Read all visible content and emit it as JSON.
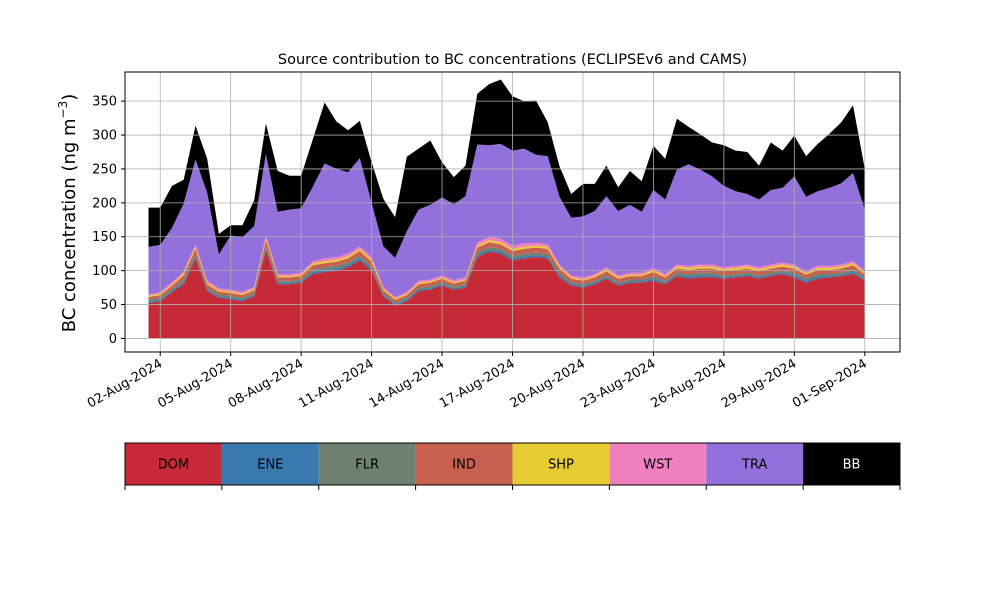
{
  "chart_data": {
    "type": "area",
    "stacked": true,
    "title": "Source contribution to BC concentrations (ECLIPSEv6 and CAMS)",
    "xlabel": "",
    "ylabel": "BC concentration (ng m",
    "ylabel_sup": "−3",
    "ylabel_close": ")",
    "ylim": [
      -20,
      393
    ],
    "xlim": [
      "2024-07-31T12:00",
      "2024-09-02T12:00"
    ],
    "grid": true,
    "yticks": [
      0,
      50,
      100,
      150,
      200,
      250,
      300,
      350
    ],
    "xticks": [
      "2024-08-02",
      "2024-08-05",
      "2024-08-08",
      "2024-08-11",
      "2024-08-14",
      "2024-08-17",
      "2024-08-20",
      "2024-08-23",
      "2024-08-26",
      "2024-08-29",
      "2024-09-01"
    ],
    "xtick_labels": [
      "02-Aug-2024",
      "05-Aug-2024",
      "08-Aug-2024",
      "11-Aug-2024",
      "14-Aug-2024",
      "17-Aug-2024",
      "20-Aug-2024",
      "23-Aug-2024",
      "26-Aug-2024",
      "29-Aug-2024",
      "01-Sep-2024"
    ],
    "x": [
      "2024-08-01T12:00",
      "2024-08-02T00:00",
      "2024-08-02T12:00",
      "2024-08-03T00:00",
      "2024-08-03T12:00",
      "2024-08-04T00:00",
      "2024-08-04T12:00",
      "2024-08-05T00:00",
      "2024-08-05T12:00",
      "2024-08-06T00:00",
      "2024-08-06T12:00",
      "2024-08-07T00:00",
      "2024-08-07T12:00",
      "2024-08-08T00:00",
      "2024-08-08T12:00",
      "2024-08-09T00:00",
      "2024-08-09T12:00",
      "2024-08-10T00:00",
      "2024-08-10T12:00",
      "2024-08-11T00:00",
      "2024-08-11T12:00",
      "2024-08-12T00:00",
      "2024-08-12T12:00",
      "2024-08-13T00:00",
      "2024-08-13T12:00",
      "2024-08-14T00:00",
      "2024-08-14T12:00",
      "2024-08-15T00:00",
      "2024-08-15T12:00",
      "2024-08-16T00:00",
      "2024-08-16T12:00",
      "2024-08-17T00:00",
      "2024-08-17T12:00",
      "2024-08-18T00:00",
      "2024-08-18T12:00",
      "2024-08-19T00:00",
      "2024-08-19T12:00",
      "2024-08-20T00:00",
      "2024-08-20T12:00",
      "2024-08-21T00:00",
      "2024-08-21T12:00",
      "2024-08-22T00:00",
      "2024-08-22T12:00",
      "2024-08-23T00:00",
      "2024-08-23T12:00",
      "2024-08-24T00:00",
      "2024-08-24T12:00",
      "2024-08-25T00:00",
      "2024-08-25T12:00",
      "2024-08-26T00:00",
      "2024-08-26T12:00",
      "2024-08-27T00:00",
      "2024-08-27T12:00",
      "2024-08-28T00:00",
      "2024-08-28T12:00",
      "2024-08-29T00:00",
      "2024-08-29T12:00",
      "2024-08-30T00:00",
      "2024-08-30T12:00",
      "2024-08-31T00:00",
      "2024-08-31T12:00",
      "2024-09-01T00:00"
    ],
    "series": [
      {
        "name": "DOM",
        "color": "#c52a36",
        "values": [
          52,
          55,
          68,
          80,
          118,
          70,
          60,
          58,
          55,
          62,
          130,
          80,
          80,
          82,
          95,
          98,
          100,
          105,
          115,
          100,
          62,
          48,
          55,
          70,
          72,
          78,
          72,
          75,
          120,
          128,
          125,
          115,
          118,
          120,
          118,
          90,
          78,
          75,
          80,
          88,
          78,
          82,
          82,
          85,
          80,
          92,
          88,
          90,
          90,
          88,
          90,
          92,
          88,
          92,
          95,
          90,
          82,
          88,
          90,
          92,
          95,
          85
        ]
      },
      {
        "name": "ENE",
        "color": "#3a78b0",
        "values": [
          2,
          2,
          2,
          3,
          3,
          2,
          2,
          2,
          2,
          2,
          3,
          2,
          2,
          2,
          3,
          3,
          3,
          3,
          3,
          3,
          2,
          2,
          2,
          2,
          2,
          2,
          2,
          2,
          3,
          3,
          3,
          3,
          3,
          3,
          3,
          3,
          2,
          2,
          2,
          2,
          2,
          2,
          2,
          3,
          2,
          2,
          3,
          3,
          3,
          2,
          2,
          2,
          2,
          2,
          2,
          3,
          3,
          3,
          2,
          2,
          3,
          2
        ]
      },
      {
        "name": "FLR",
        "color": "#6e8070",
        "values": [
          3,
          3,
          3,
          4,
          4,
          3,
          3,
          3,
          3,
          3,
          4,
          3,
          3,
          3,
          4,
          4,
          4,
          4,
          4,
          4,
          3,
          3,
          3,
          3,
          3,
          3,
          3,
          3,
          4,
          4,
          4,
          4,
          4,
          4,
          4,
          4,
          3,
          3,
          3,
          3,
          3,
          3,
          3,
          4,
          3,
          3,
          4,
          4,
          4,
          3,
          3,
          3,
          3,
          3,
          3,
          4,
          4,
          4,
          3,
          3,
          4,
          3
        ]
      },
      {
        "name": "IND",
        "color": "#c86050",
        "values": [
          4,
          4,
          5,
          6,
          7,
          5,
          4,
          4,
          4,
          4,
          8,
          5,
          5,
          5,
          6,
          6,
          6,
          6,
          7,
          6,
          4,
          4,
          4,
          5,
          5,
          5,
          4,
          5,
          7,
          7,
          7,
          7,
          7,
          7,
          7,
          6,
          5,
          5,
          5,
          6,
          5,
          5,
          5,
          6,
          5,
          6,
          6,
          6,
          6,
          6,
          6,
          6,
          6,
          6,
          6,
          6,
          5,
          6,
          6,
          6,
          6,
          5
        ]
      },
      {
        "name": "SHP",
        "color": "#e6cc30",
        "values": [
          2,
          2,
          2,
          3,
          3,
          2,
          2,
          2,
          2,
          2,
          3,
          2,
          2,
          2,
          3,
          3,
          3,
          3,
          3,
          3,
          2,
          2,
          2,
          2,
          2,
          2,
          2,
          2,
          3,
          3,
          3,
          3,
          3,
          3,
          3,
          3,
          2,
          2,
          2,
          3,
          2,
          2,
          2,
          3,
          2,
          3,
          3,
          3,
          3,
          3,
          3,
          3,
          3,
          3,
          3,
          3,
          2,
          3,
          3,
          3,
          3,
          2
        ]
      },
      {
        "name": "WST",
        "color": "#f080c0",
        "values": [
          2,
          2,
          3,
          3,
          4,
          3,
          3,
          3,
          3,
          3,
          4,
          3,
          3,
          3,
          3,
          4,
          4,
          4,
          4,
          4,
          3,
          2,
          2,
          3,
          3,
          3,
          3,
          3,
          4,
          5,
          5,
          5,
          5,
          4,
          4,
          3,
          3,
          3,
          3,
          3,
          3,
          3,
          3,
          3,
          3,
          3,
          3,
          3,
          3,
          3,
          3,
          3,
          3,
          3,
          3,
          3,
          3,
          3,
          3,
          3,
          3,
          3
        ]
      },
      {
        "name": "TRA",
        "color": "#9370db",
        "values": [
          70,
          70,
          80,
          100,
          125,
          130,
          50,
          80,
          80,
          90,
          120,
          92,
          95,
          95,
          110,
          140,
          130,
          120,
          130,
          80,
          60,
          58,
          90,
          105,
          110,
          115,
          112,
          120,
          145,
          135,
          140,
          140,
          140,
          130,
          130,
          100,
          85,
          90,
          93,
          105,
          95,
          100,
          90,
          115,
          110,
          140,
          150,
          140,
          130,
          120,
          110,
          104,
          100,
          110,
          110,
          130,
          110,
          110,
          115,
          120,
          130,
          90
        ]
      },
      {
        "name": "BB",
        "color": "#000000",
        "values": [
          58,
          55,
          62,
          35,
          50,
          50,
          30,
          15,
          18,
          38,
          45,
          60,
          50,
          48,
          70,
          90,
          70,
          62,
          55,
          60,
          70,
          60,
          110,
          90,
          95,
          52,
          40,
          45,
          75,
          90,
          95,
          80,
          70,
          80,
          50,
          45,
          35,
          48,
          40,
          45,
          35,
          50,
          45,
          65,
          60,
          75,
          55,
          52,
          50,
          60,
          60,
          62,
          50,
          70,
          55,
          60,
          60,
          70,
          80,
          90,
          100,
          60
        ]
      }
    ]
  }
}
